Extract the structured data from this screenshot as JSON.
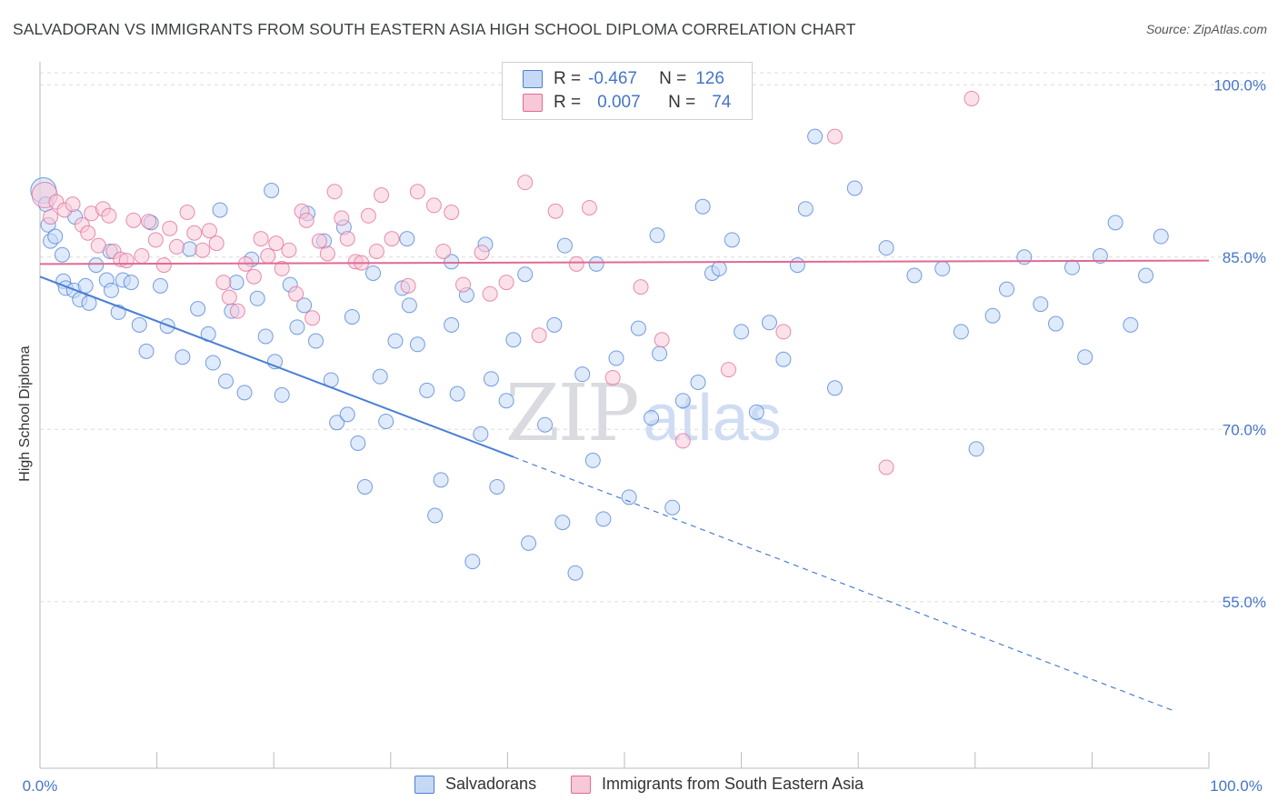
{
  "title": "SALVADORAN VS IMMIGRANTS FROM SOUTH EASTERN ASIA HIGH SCHOOL DIPLOMA CORRELATION CHART",
  "source": "Source: ZipAtlas.com",
  "watermark": {
    "zip": "ZIP",
    "atlas": "atlas"
  },
  "colors": {
    "blue": "#4a7fd4",
    "blue_fill": "#c5d8f5",
    "pink": "#e06a95",
    "pink_fill": "#f7c8d8",
    "axis_label": "#4575c8"
  },
  "legend_top": {
    "rows": [
      {
        "r_label": "R =",
        "r_value": "-0.467",
        "n_label": "N =",
        "n_value": "126"
      },
      {
        "r_label": "R =",
        "r_value": "0.007",
        "n_label": "N =",
        "n_value": "74"
      }
    ]
  },
  "chart_data": {
    "type": "scatter",
    "title": "SALVADORAN VS IMMIGRANTS FROM SOUTH EASTERN ASIA HIGH SCHOOL DIPLOMA CORRELATION CHART",
    "xlabel": "",
    "ylabel": "High School Diploma",
    "xlim": [
      0,
      100
    ],
    "ylim": [
      40.5,
      102
    ],
    "x_tick_labels": [
      "0.0%",
      "100.0%"
    ],
    "y_ticks": [
      55,
      70,
      85,
      100
    ],
    "y_tick_labels": [
      "55.0%",
      "70.0%",
      "85.0%",
      "100.0%"
    ],
    "legend": [
      "Salvadorans",
      "Immigrants from South Eastern Asia"
    ],
    "series": [
      {
        "name": "Salvadorans",
        "color": "#4a7fd4",
        "trend": {
          "x0": 0,
          "y0": 83.3,
          "x1": 40.5,
          "y1": 67.6,
          "dash_to_x": 97,
          "dash_to_y": 45.5
        },
        "points": [
          [
            0.3,
            90.8
          ],
          [
            0.5,
            89.6
          ],
          [
            0.7,
            87.8
          ],
          [
            0.9,
            86.4
          ],
          [
            1.3,
            86.8
          ],
          [
            1.9,
            85.2
          ],
          [
            2.0,
            82.9
          ],
          [
            2.2,
            82.3
          ],
          [
            2.9,
            82.1
          ],
          [
            3.4,
            81.3
          ],
          [
            3.9,
            82.5
          ],
          [
            4.2,
            81.0
          ],
          [
            4.8,
            84.3
          ],
          [
            5.7,
            83.0
          ],
          [
            6.1,
            82.1
          ],
          [
            6.7,
            80.2
          ],
          [
            7.1,
            83.0
          ],
          [
            7.8,
            82.8
          ],
          [
            8.5,
            79.1
          ],
          [
            9.1,
            76.8
          ],
          [
            10.3,
            82.5
          ],
          [
            10.9,
            79.0
          ],
          [
            12.2,
            76.3
          ],
          [
            13.5,
            80.5
          ],
          [
            14.4,
            78.3
          ],
          [
            14.8,
            75.8
          ],
          [
            15.9,
            74.2
          ],
          [
            16.4,
            80.3
          ],
          [
            16.8,
            82.8
          ],
          [
            17.5,
            73.2
          ],
          [
            18.1,
            84.8
          ],
          [
            18.6,
            81.4
          ],
          [
            19.3,
            78.1
          ],
          [
            20.1,
            75.9
          ],
          [
            20.7,
            73.0
          ],
          [
            21.4,
            82.6
          ],
          [
            22.0,
            78.9
          ],
          [
            22.6,
            80.8
          ],
          [
            23.6,
            77.7
          ],
          [
            24.3,
            86.4
          ],
          [
            24.9,
            74.3
          ],
          [
            25.4,
            70.6
          ],
          [
            26.3,
            71.3
          ],
          [
            26.7,
            79.8
          ],
          [
            27.2,
            68.8
          ],
          [
            27.8,
            65.0
          ],
          [
            28.5,
            83.6
          ],
          [
            29.1,
            74.6
          ],
          [
            29.6,
            70.7
          ],
          [
            30.4,
            77.7
          ],
          [
            31.0,
            82.3
          ],
          [
            31.6,
            80.8
          ],
          [
            32.3,
            77.4
          ],
          [
            33.1,
            73.4
          ],
          [
            33.8,
            62.5
          ],
          [
            34.3,
            65.6
          ],
          [
            35.2,
            79.1
          ],
          [
            35.7,
            73.1
          ],
          [
            36.5,
            81.7
          ],
          [
            37.0,
            58.5
          ],
          [
            37.7,
            69.6
          ],
          [
            38.6,
            74.4
          ],
          [
            39.1,
            65.0
          ],
          [
            39.9,
            72.5
          ],
          [
            40.5,
            77.8
          ],
          [
            41.8,
            60.1
          ],
          [
            43.2,
            70.4
          ],
          [
            44.0,
            79.1
          ],
          [
            44.7,
            61.9
          ],
          [
            45.8,
            57.5
          ],
          [
            46.4,
            74.8
          ],
          [
            47.3,
            67.3
          ],
          [
            48.2,
            62.2
          ],
          [
            49.3,
            76.2
          ],
          [
            50.4,
            64.1
          ],
          [
            51.2,
            78.8
          ],
          [
            52.3,
            71.0
          ],
          [
            53.0,
            76.6
          ],
          [
            54.1,
            63.2
          ],
          [
            55.0,
            72.5
          ],
          [
            56.3,
            74.1
          ],
          [
            57.5,
            83.6
          ],
          [
            58.1,
            84.0
          ],
          [
            59.2,
            86.5
          ],
          [
            60.0,
            78.5
          ],
          [
            61.3,
            71.5
          ],
          [
            62.4,
            79.3
          ],
          [
            63.6,
            76.1
          ],
          [
            64.8,
            84.3
          ],
          [
            65.5,
            89.2
          ],
          [
            66.3,
            95.5
          ],
          [
            68.0,
            73.6
          ],
          [
            69.7,
            91.0
          ],
          [
            72.4,
            85.8
          ],
          [
            74.8,
            83.4
          ],
          [
            77.2,
            84.0
          ],
          [
            78.8,
            78.5
          ],
          [
            80.1,
            68.3
          ],
          [
            81.5,
            79.9
          ],
          [
            82.7,
            82.2
          ],
          [
            84.2,
            85.0
          ],
          [
            85.6,
            80.9
          ],
          [
            86.9,
            79.2
          ],
          [
            88.3,
            84.1
          ],
          [
            89.4,
            76.3
          ],
          [
            90.7,
            85.1
          ],
          [
            92.0,
            88.0
          ],
          [
            93.3,
            79.1
          ],
          [
            94.6,
            83.4
          ],
          [
            95.9,
            86.8
          ],
          [
            3.0,
            88.5
          ],
          [
            6.0,
            85.5
          ],
          [
            9.5,
            88.0
          ],
          [
            12.8,
            85.7
          ],
          [
            15.4,
            89.1
          ],
          [
            19.8,
            90.8
          ],
          [
            22.9,
            88.8
          ],
          [
            26.0,
            87.6
          ],
          [
            31.4,
            86.6
          ],
          [
            35.2,
            84.6
          ],
          [
            38.1,
            86.1
          ],
          [
            41.5,
            83.5
          ],
          [
            44.9,
            86.0
          ],
          [
            47.6,
            84.4
          ],
          [
            52.8,
            86.9
          ],
          [
            56.7,
            89.4
          ]
        ]
      },
      {
        "name": "Immigrants from South Eastern Asia",
        "color": "#e06a95",
        "trend": {
          "x0": 0,
          "y0": 84.4,
          "x1": 100,
          "y1": 84.7
        },
        "points": [
          [
            0.4,
            90.4
          ],
          [
            0.9,
            88.5
          ],
          [
            1.4,
            89.8
          ],
          [
            2.1,
            89.1
          ],
          [
            2.8,
            89.6
          ],
          [
            3.6,
            87.8
          ],
          [
            4.1,
            87.1
          ],
          [
            4.4,
            88.8
          ],
          [
            5.0,
            86.0
          ],
          [
            5.4,
            89.2
          ],
          [
            5.9,
            88.6
          ],
          [
            6.3,
            85.5
          ],
          [
            6.9,
            84.8
          ],
          [
            7.4,
            84.7
          ],
          [
            8.0,
            88.2
          ],
          [
            8.7,
            85.1
          ],
          [
            9.3,
            88.1
          ],
          [
            9.9,
            86.5
          ],
          [
            10.6,
            84.3
          ],
          [
            11.1,
            87.5
          ],
          [
            11.7,
            85.9
          ],
          [
            12.6,
            88.9
          ],
          [
            13.2,
            87.1
          ],
          [
            13.9,
            85.6
          ],
          [
            14.5,
            87.3
          ],
          [
            15.1,
            86.2
          ],
          [
            15.7,
            82.8
          ],
          [
            16.2,
            81.5
          ],
          [
            16.9,
            80.3
          ],
          [
            17.6,
            84.4
          ],
          [
            18.3,
            83.3
          ],
          [
            18.9,
            86.6
          ],
          [
            19.5,
            85.1
          ],
          [
            20.2,
            86.2
          ],
          [
            20.7,
            84.0
          ],
          [
            21.3,
            85.6
          ],
          [
            21.9,
            81.8
          ],
          [
            22.4,
            89.0
          ],
          [
            22.8,
            88.2
          ],
          [
            23.3,
            79.7
          ],
          [
            23.9,
            86.4
          ],
          [
            24.6,
            85.3
          ],
          [
            25.2,
            90.7
          ],
          [
            25.8,
            88.4
          ],
          [
            26.3,
            86.6
          ],
          [
            27.0,
            84.6
          ],
          [
            27.5,
            84.5
          ],
          [
            28.1,
            88.6
          ],
          [
            28.8,
            85.5
          ],
          [
            29.2,
            90.4
          ],
          [
            30.1,
            86.6
          ],
          [
            31.5,
            82.5
          ],
          [
            32.3,
            90.7
          ],
          [
            33.7,
            89.5
          ],
          [
            34.5,
            85.5
          ],
          [
            35.2,
            88.9
          ],
          [
            36.2,
            82.6
          ],
          [
            37.8,
            85.4
          ],
          [
            38.5,
            81.8
          ],
          [
            39.9,
            82.8
          ],
          [
            41.5,
            91.5
          ],
          [
            42.7,
            78.2
          ],
          [
            44.1,
            89.0
          ],
          [
            45.9,
            84.4
          ],
          [
            47.0,
            89.3
          ],
          [
            49.0,
            74.5
          ],
          [
            51.4,
            82.4
          ],
          [
            53.2,
            77.8
          ],
          [
            55.0,
            69.0
          ],
          [
            58.9,
            75.2
          ],
          [
            63.6,
            78.5
          ],
          [
            68.0,
            95.5
          ],
          [
            72.4,
            66.7
          ],
          [
            79.7,
            98.8
          ]
        ]
      }
    ]
  }
}
